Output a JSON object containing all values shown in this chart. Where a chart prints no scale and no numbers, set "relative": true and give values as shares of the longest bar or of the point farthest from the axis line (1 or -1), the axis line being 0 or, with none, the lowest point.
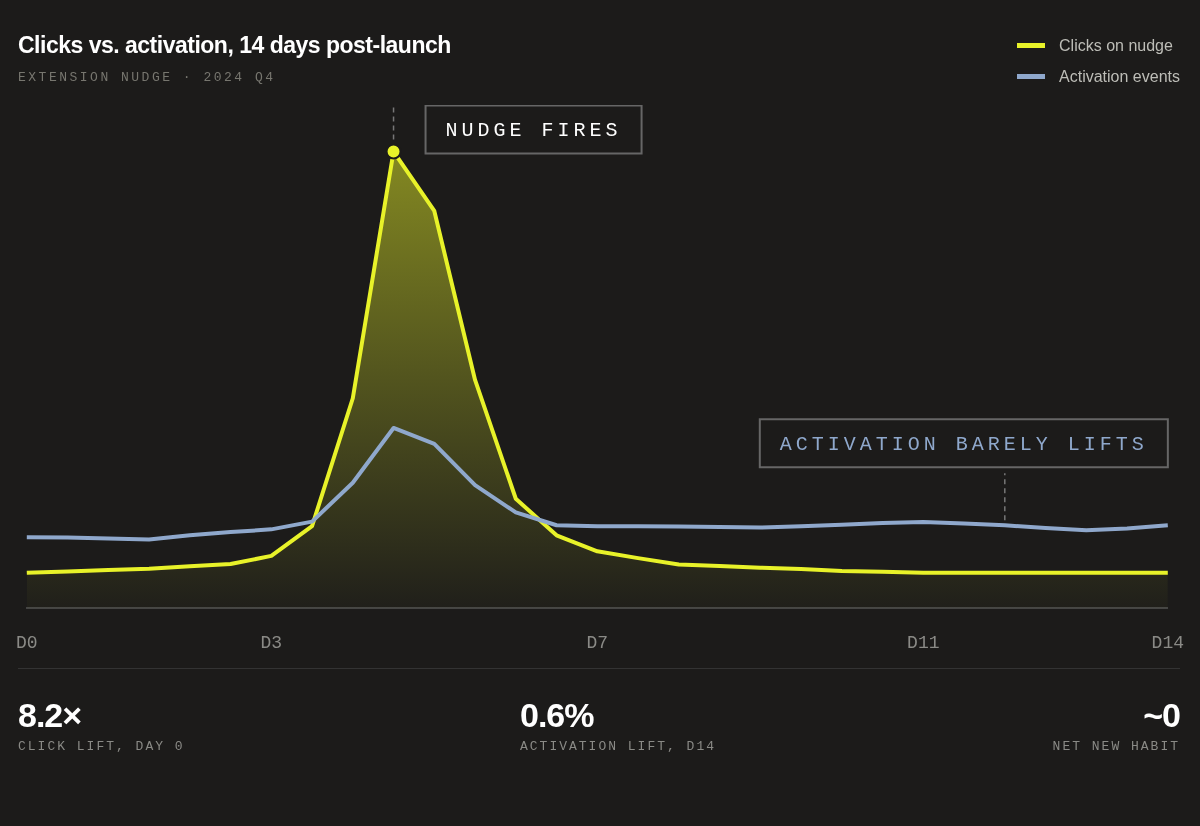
{
  "chart_data": {
    "type": "line",
    "title": "Clicks vs. activation, 14 days post-launch",
    "subtitle": "EXTENSION NUDGE · 2024 Q4",
    "relative": true,
    "legend": "top right",
    "categories": [
      "D0",
      null,
      null,
      null,
      null,
      null,
      "D3",
      null,
      null,
      null,
      null,
      null,
      null,
      null,
      "D7",
      null,
      null,
      null,
      null,
      null,
      null,
      null,
      "D11",
      null,
      null,
      null,
      null,
      null,
      "D14"
    ],
    "series": [
      {
        "name": "Clicks on nudge",
        "color": "#e8f229",
        "type": "area",
        "values": [
          0.078,
          0.081,
          0.084,
          0.087,
          0.092,
          0.097,
          0.115,
          0.18,
          0.46,
          1,
          0.87,
          0.5,
          0.24,
          0.16,
          0.125,
          0.11,
          0.096,
          0.093,
          0.089,
          0.086,
          0.082,
          0.08,
          0.078,
          0.078,
          0.078,
          0.078,
          0.078,
          0.078,
          0.078
        ]
      },
      {
        "name": "Activation events",
        "color": "#8fa8cc",
        "type": "line",
        "values": [
          0.156,
          0.155,
          0.153,
          0.151,
          0.16,
          0.167,
          0.173,
          0.19,
          0.275,
          0.395,
          0.36,
          0.27,
          0.21,
          0.182,
          0.18,
          0.18,
          0.179,
          0.178,
          0.177,
          0.18,
          0.183,
          0.187,
          0.189,
          0.186,
          0.182,
          0.176,
          0.171,
          0.175,
          0.182
        ]
      }
    ],
    "annotations": [
      "NUDGE FIRES",
      "ACTIVATION BARELY LIFTS",
      "8.2×",
      "CLICK LIFT, DAY 0",
      "0.6%",
      "ACTIVATION LIFT, D14",
      "~0",
      "NET NEW HABIT"
    ]
  }
}
